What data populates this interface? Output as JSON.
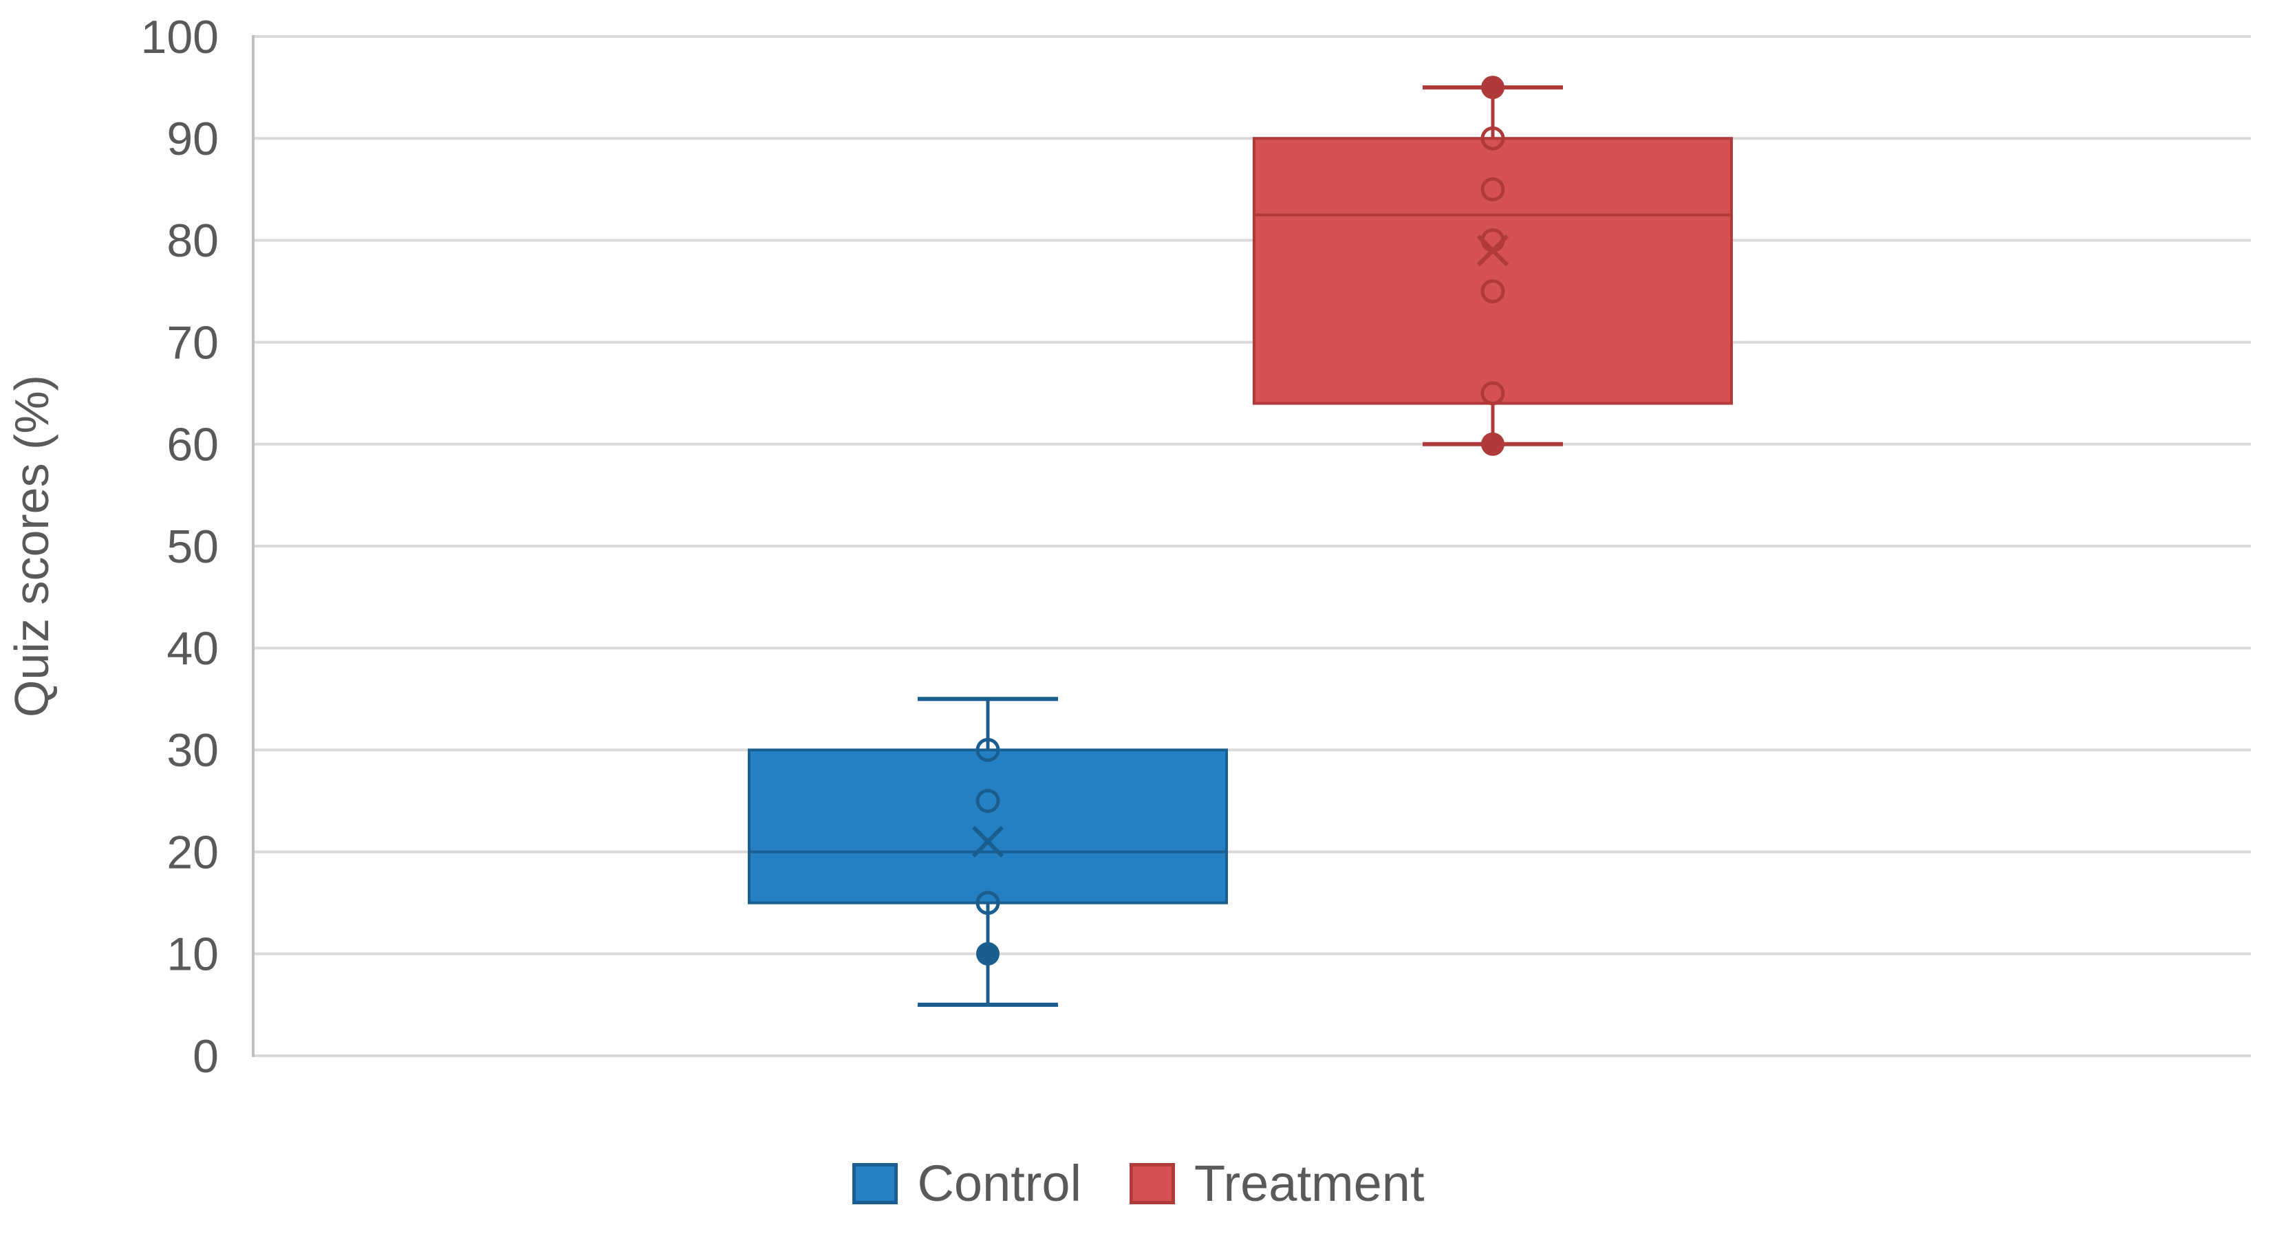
{
  "chart_data": {
    "type": "boxplot",
    "title": "",
    "xlabel": "",
    "ylabel": "Quiz scores (%)",
    "ylim": [
      0,
      100
    ],
    "yticks": [
      0,
      10,
      20,
      30,
      40,
      50,
      60,
      70,
      80,
      90,
      100
    ],
    "grid": true,
    "legend_position": "bottom",
    "colors": {
      "background": "#FFFFFF",
      "gridline": "#D9D9D9",
      "axis_line": "#BFBFBF",
      "text": "#595959",
      "control_fill": "#2480C2",
      "control_stroke": "#1A5E90",
      "treatment_fill": "#D65252",
      "treatment_stroke": "#B03A3A"
    },
    "series": [
      {
        "name": "Control",
        "fill": "#2480C2",
        "stroke": "#1A5E90",
        "whisker_min": 5,
        "q1": 15,
        "median": 20,
        "q3": 30,
        "whisker_max": 35,
        "mean": 21,
        "open_points": [
          30,
          25,
          15
        ],
        "filled_points": [
          10
        ]
      },
      {
        "name": "Treatment",
        "fill": "#D65252",
        "stroke": "#B03A3A",
        "whisker_min": 60,
        "q1": 64,
        "median": 82.5,
        "q3": 90,
        "whisker_max": 95,
        "mean": 79,
        "open_points": [
          90,
          85,
          80,
          75,
          65
        ],
        "filled_points": [
          95,
          60
        ]
      }
    ]
  }
}
